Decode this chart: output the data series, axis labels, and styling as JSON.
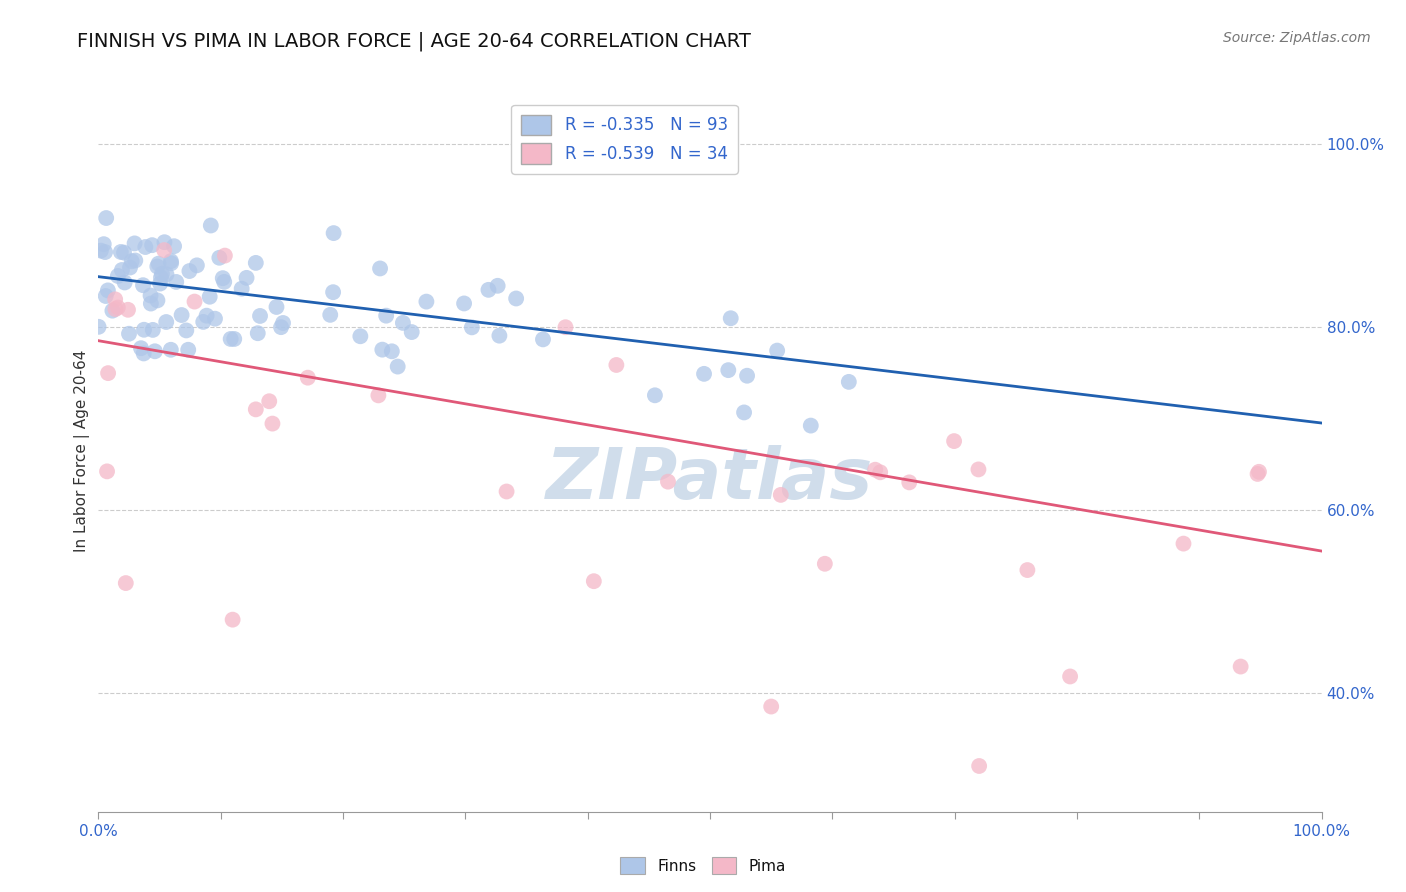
{
  "title": "FINNISH VS PIMA IN LABOR FORCE | AGE 20-64 CORRELATION CHART",
  "source_text": "Source: ZipAtlas.com",
  "ylabel": "In Labor Force | Age 20-64",
  "xlim": [
    0.0,
    1.0
  ],
  "ylim": [
    0.27,
    1.06
  ],
  "yticks": [
    0.4,
    0.6,
    0.8,
    1.0
  ],
  "ytick_labels": [
    "40.0%",
    "60.0%",
    "80.0%",
    "100.0%"
  ],
  "finns_R": -0.335,
  "finns_N": 93,
  "pima_R": -0.539,
  "pima_N": 34,
  "finns_color": "#aec6e8",
  "pima_color": "#f4b8c8",
  "finns_line_color": "#2060b0",
  "pima_line_color": "#e05878",
  "background_color": "#ffffff",
  "grid_color": "#cccccc",
  "title_fontsize": 14,
  "axis_label_fontsize": 11,
  "tick_fontsize": 11,
  "legend_fontsize": 12,
  "source_fontsize": 10,
  "watermark_text": "ZIPatlas",
  "watermark_color": "#c8d8e8",
  "watermark_fontsize": 52,
  "finns_line_start_y": 0.855,
  "finns_line_end_y": 0.695,
  "pima_line_start_y": 0.785,
  "pima_line_end_y": 0.555
}
